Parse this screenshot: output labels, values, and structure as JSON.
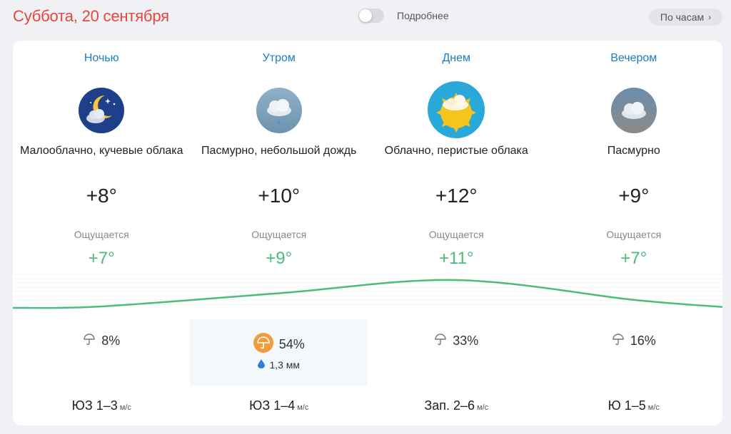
{
  "header": {
    "date_title": "Суббота, 20 сентября",
    "toggle_label": "Подробнее",
    "hourly_button": "По часам"
  },
  "periods": [
    {
      "name": "Ночью",
      "icon": "moon-cloud-icon",
      "condition": "Малооблачно, кучевые облака",
      "temp": "+8°",
      "feels_label": "Ощущается",
      "feels": "+7°",
      "precip_prob": "8%",
      "precip_amount": "",
      "wind_dir_speed": "ЮЗ 1–3",
      "wind_unit": "м/с"
    },
    {
      "name": "Утром",
      "icon": "cloud-light-rain-icon",
      "condition": "Пасмурно, небольшой дождь",
      "temp": "+10°",
      "feels_label": "Ощущается",
      "feels": "+9°",
      "precip_prob": "54%",
      "precip_amount": "1,3 мм",
      "wind_dir_speed": "ЮЗ 1–4",
      "wind_unit": "м/с"
    },
    {
      "name": "Днем",
      "icon": "sun-cloud-icon",
      "condition": "Облачно, перистые облака",
      "temp": "+12°",
      "feels_label": "Ощущается",
      "feels": "+11°",
      "precip_prob": "33%",
      "precip_amount": "",
      "wind_dir_speed": "Зап. 2–6",
      "wind_unit": "м/с"
    },
    {
      "name": "Вечером",
      "icon": "overcast-cloud-icon",
      "condition": "Пасмурно",
      "temp": "+9°",
      "feels_label": "Ощущается",
      "feels": "+7°",
      "precip_prob": "16%",
      "precip_amount": "",
      "wind_dir_speed": "Ю 1–5",
      "wind_unit": "м/с"
    }
  ],
  "colors": {
    "accent_red": "#e8453c",
    "period_blue": "#1b7dc4",
    "feels_green": "#4cbc7d",
    "rain_orange": "#f39a3c"
  },
  "chart_data": {
    "type": "line",
    "x": [
      "Ночью",
      "Утром",
      "Днем",
      "Вечером"
    ],
    "series": [
      {
        "values": [
          8,
          10,
          12,
          9
        ]
      }
    ]
  }
}
